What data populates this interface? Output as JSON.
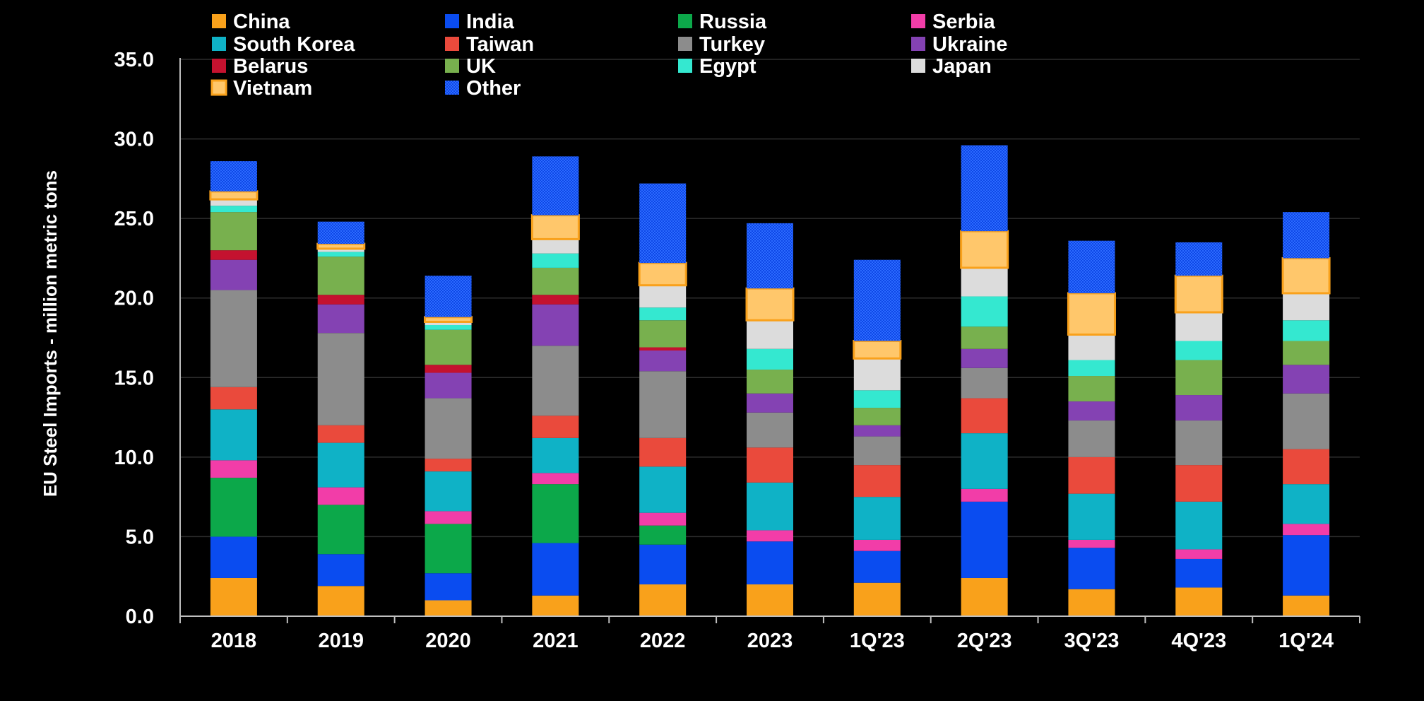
{
  "chart_data": {
    "type": "bar",
    "stacked": true,
    "title": "",
    "xlabel": "",
    "ylabel": "EU Steel Imports - million metric tons",
    "ylim": [
      0,
      35
    ],
    "yticks": [
      0,
      5,
      10,
      15,
      20,
      25,
      30,
      35
    ],
    "ytick_labels": [
      "0.0",
      "5.0",
      "10.0",
      "15.0",
      "20.0",
      "25.0",
      "30.0",
      "35.0"
    ],
    "grid": true,
    "legend_position": "top",
    "categories": [
      "2018",
      "2019",
      "2020",
      "2021",
      "2022",
      "2023",
      "1Q'23",
      "2Q'23",
      "3Q'23",
      "4Q'23",
      "1Q'24"
    ],
    "series": [
      {
        "name": "China",
        "color": "#F9A11B",
        "values": [
          2.4,
          1.9,
          1.0,
          1.3,
          2.0,
          2.0,
          2.1,
          2.4,
          1.7,
          1.8,
          1.3
        ]
      },
      {
        "name": "India",
        "color": "#0A4CF0",
        "values": [
          2.6,
          2.0,
          1.7,
          3.3,
          2.5,
          2.7,
          2.0,
          4.8,
          2.6,
          1.8,
          3.8
        ]
      },
      {
        "name": "Russia",
        "color": "#0CA84A",
        "values": [
          3.7,
          3.1,
          3.1,
          3.7,
          1.2,
          0.0,
          0.0,
          0.0,
          0.0,
          0.0,
          0.0
        ]
      },
      {
        "name": "Serbia",
        "color": "#F23DA8",
        "values": [
          1.1,
          1.1,
          0.8,
          0.7,
          0.8,
          0.7,
          0.7,
          0.8,
          0.5,
          0.6,
          0.7
        ]
      },
      {
        "name": "South Korea",
        "color": "#0FB2C6",
        "values": [
          3.2,
          2.8,
          2.5,
          2.2,
          2.9,
          3.0,
          2.7,
          3.5,
          2.9,
          3.0,
          2.5
        ]
      },
      {
        "name": "Taiwan",
        "color": "#EA4A3C",
        "values": [
          1.4,
          1.1,
          0.8,
          1.4,
          1.8,
          2.2,
          2.0,
          2.2,
          2.3,
          2.3,
          2.2
        ]
      },
      {
        "name": "Turkey",
        "color": "#8C8C8C",
        "values": [
          6.1,
          5.8,
          3.8,
          4.4,
          4.2,
          2.2,
          1.8,
          1.9,
          2.3,
          2.8,
          3.5
        ]
      },
      {
        "name": "Ukraine",
        "color": "#8442B3",
        "values": [
          1.9,
          1.8,
          1.6,
          2.6,
          1.3,
          1.2,
          0.7,
          1.2,
          1.2,
          1.6,
          1.8
        ]
      },
      {
        "name": "Belarus",
        "color": "#C4122F",
        "values": [
          0.6,
          0.6,
          0.5,
          0.6,
          0.2,
          0.0,
          0.0,
          0.0,
          0.0,
          0.0,
          0.0
        ]
      },
      {
        "name": "UK",
        "color": "#78B04E",
        "values": [
          2.4,
          2.4,
          2.2,
          1.7,
          1.7,
          1.5,
          1.1,
          1.4,
          1.6,
          2.2,
          1.5
        ]
      },
      {
        "name": "Egypt",
        "color": "#34E8D0",
        "values": [
          0.4,
          0.3,
          0.3,
          0.9,
          0.8,
          1.3,
          1.1,
          1.9,
          1.0,
          1.2,
          1.3
        ]
      },
      {
        "name": "Japan",
        "color": "#DCDCDC",
        "values": [
          0.4,
          0.2,
          0.2,
          0.9,
          1.4,
          1.8,
          2.0,
          1.8,
          1.6,
          1.8,
          1.7
        ]
      },
      {
        "name": "Vietnam",
        "color": "#FFC76B",
        "values": [
          0.5,
          0.3,
          0.3,
          1.5,
          1.4,
          2.0,
          1.1,
          2.3,
          2.6,
          2.3,
          2.2
        ]
      },
      {
        "name": "Other",
        "color": "#1255F5",
        "values": [
          1.9,
          1.4,
          2.6,
          3.7,
          5.0,
          4.1,
          5.1,
          5.4,
          3.3,
          2.1,
          2.9
        ]
      }
    ]
  }
}
